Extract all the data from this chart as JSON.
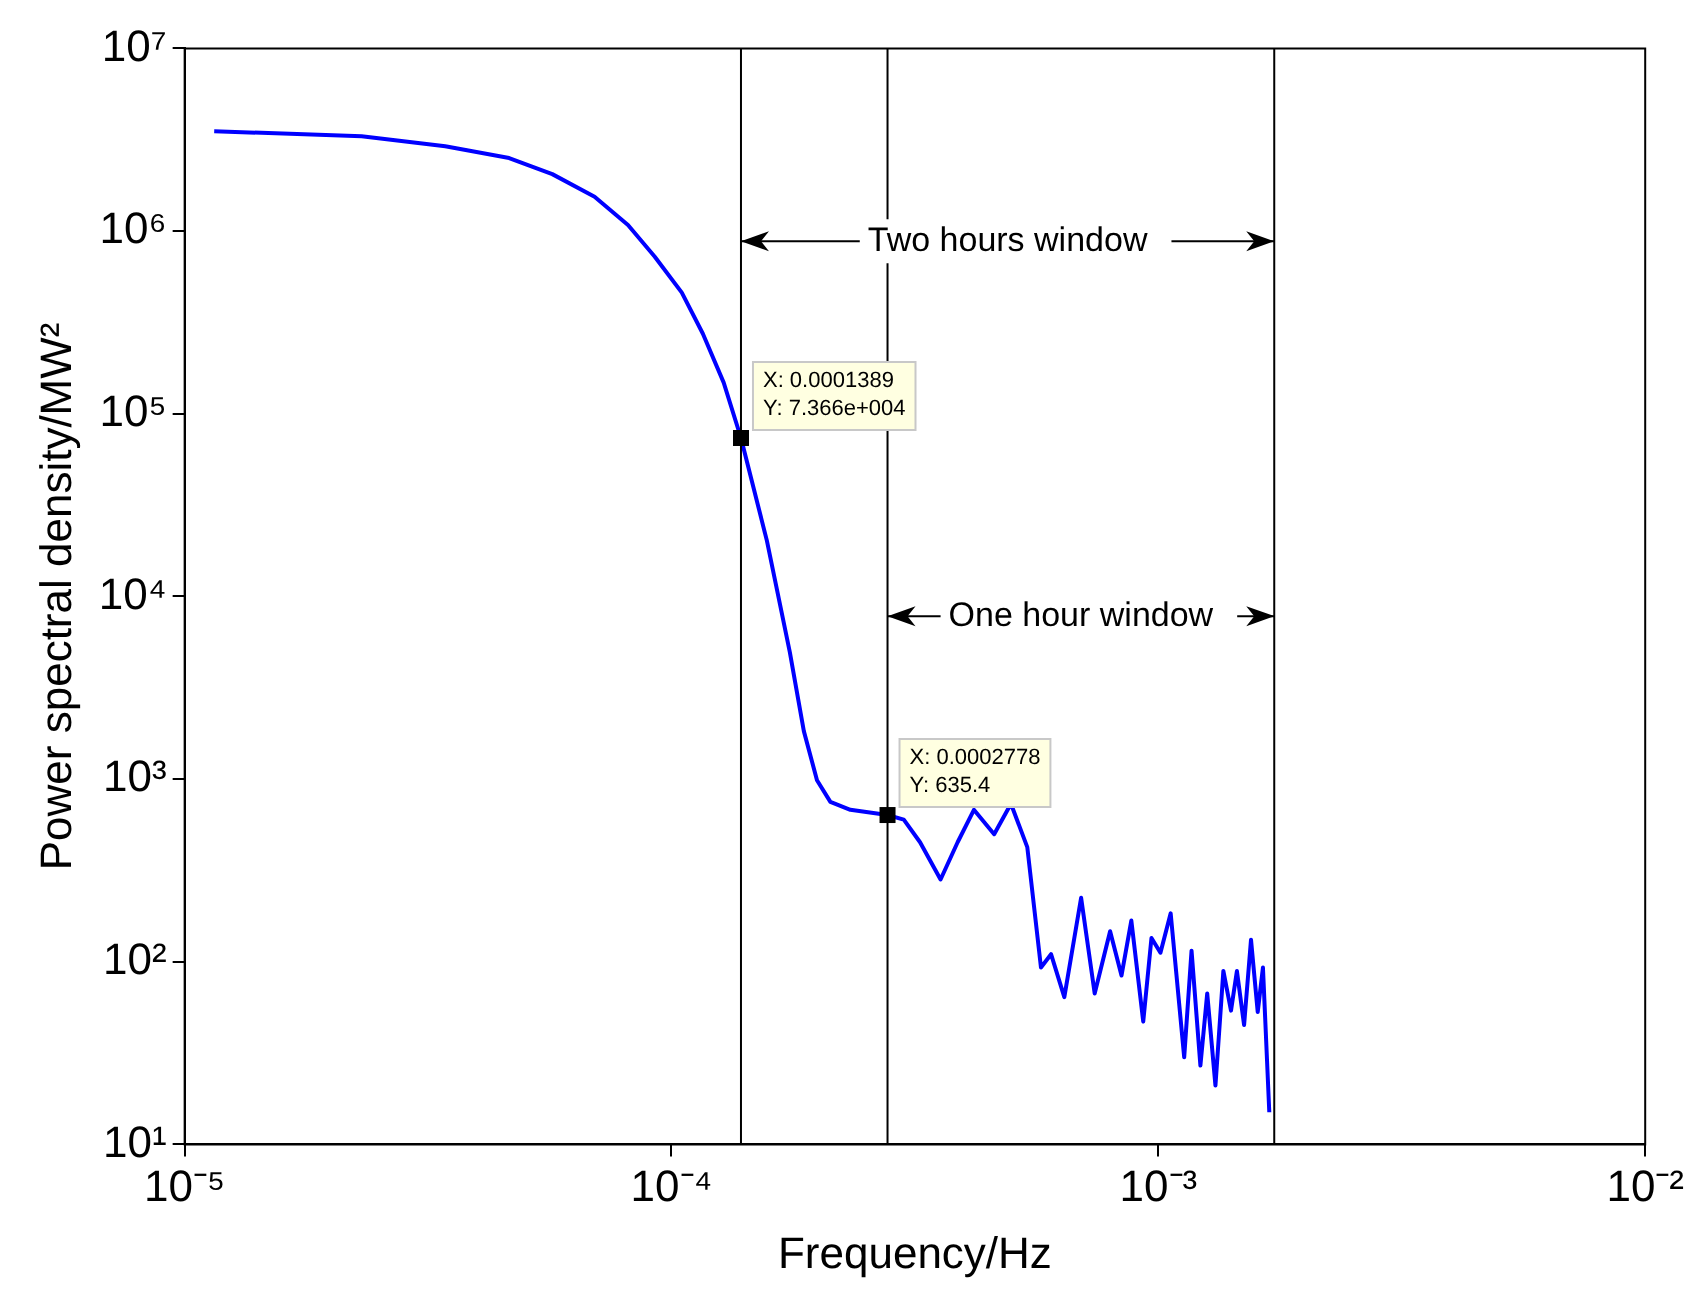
{
  "chart_data": {
    "type": "line",
    "xlabel": "Frequency/Hz",
    "ylabel": "Power spectral density/MW²",
    "log": "xy",
    "grid": false,
    "legend": false,
    "marker": "none",
    "line_style": "solid",
    "xlim": [
      1e-05,
      0.01
    ],
    "ylim": [
      10,
      10000000
    ],
    "xticks": [
      {
        "value": 1e-05,
        "label": "10⁻⁵"
      },
      {
        "value": 0.0001,
        "label": "10⁻⁴"
      },
      {
        "value": 0.001,
        "label": "10⁻³"
      },
      {
        "value": 0.01,
        "label": "10⁻²"
      }
    ],
    "yticks": [
      {
        "value": 10,
        "label": "10¹"
      },
      {
        "value": 100,
        "label": "10²"
      },
      {
        "value": 1000,
        "label": "10³"
      },
      {
        "value": 10000,
        "label": "10⁴"
      },
      {
        "value": 100000,
        "label": "10⁵"
      },
      {
        "value": 1000000,
        "label": "10⁶"
      },
      {
        "value": 10000000,
        "label": "10⁷"
      }
    ],
    "series": [
      {
        "color": "#0000ff",
        "x": [
          1.15e-05,
          2.31e-05,
          3.43e-05,
          4.64e-05,
          5.69e-05,
          6.95e-05,
          8.14e-05,
          9.24e-05,
          0.000105,
          0.000116,
          0.000128,
          0.0001389,
          0.000157,
          0.000175,
          0.000187,
          0.000199,
          0.000212,
          0.000233,
          0.0002778,
          0.0003,
          0.000324,
          0.000357,
          0.000387,
          0.000418,
          0.00046,
          0.000498,
          0.000538,
          0.000574,
          0.000602,
          0.000641,
          0.000694,
          0.00074,
          0.000796,
          0.00084,
          0.00088,
          0.000931,
          0.000968,
          0.00101,
          0.00106,
          0.00113,
          0.00117,
          0.00122,
          0.00126,
          0.00131,
          0.00136,
          0.00141,
          0.00145,
          0.0015,
          0.00155,
          0.0016,
          0.00164,
          0.00169
        ],
        "values": [
          3520000,
          3300000,
          2910000,
          2510000,
          2050000,
          1540000,
          1080000,
          724000,
          460000,
          274000,
          148000,
          73660,
          20200,
          4950,
          1830,
          986,
          750,
          679,
          635.4,
          600,
          451,
          282,
          451,
          679,
          499,
          733,
          424,
          93,
          110,
          64,
          224,
          67,
          147,
          84,
          168,
          47,
          135,
          112,
          184,
          30,
          115,
          27,
          67,
          21,
          89,
          54,
          89,
          45,
          132,
          53,
          93,
          15
        ]
      }
    ],
    "ref_lines": [
      {
        "axis": "x",
        "value": 0.0001389,
        "color": "#000000",
        "label": "Two hours window"
      },
      {
        "axis": "x",
        "value": 0.0002778,
        "color": "#000000",
        "label": "One hour window"
      },
      {
        "axis": "x",
        "value": 0.00173,
        "color": "#000000"
      }
    ],
    "annotations": [
      {
        "text": "X: 0.0001389\nY: 7.366e+004",
        "x": 0.0001389,
        "y": 73660
      },
      {
        "text": "X: 0.0002778\nY: 635.4",
        "x": 0.0002778,
        "y": 635.4
      }
    ]
  }
}
